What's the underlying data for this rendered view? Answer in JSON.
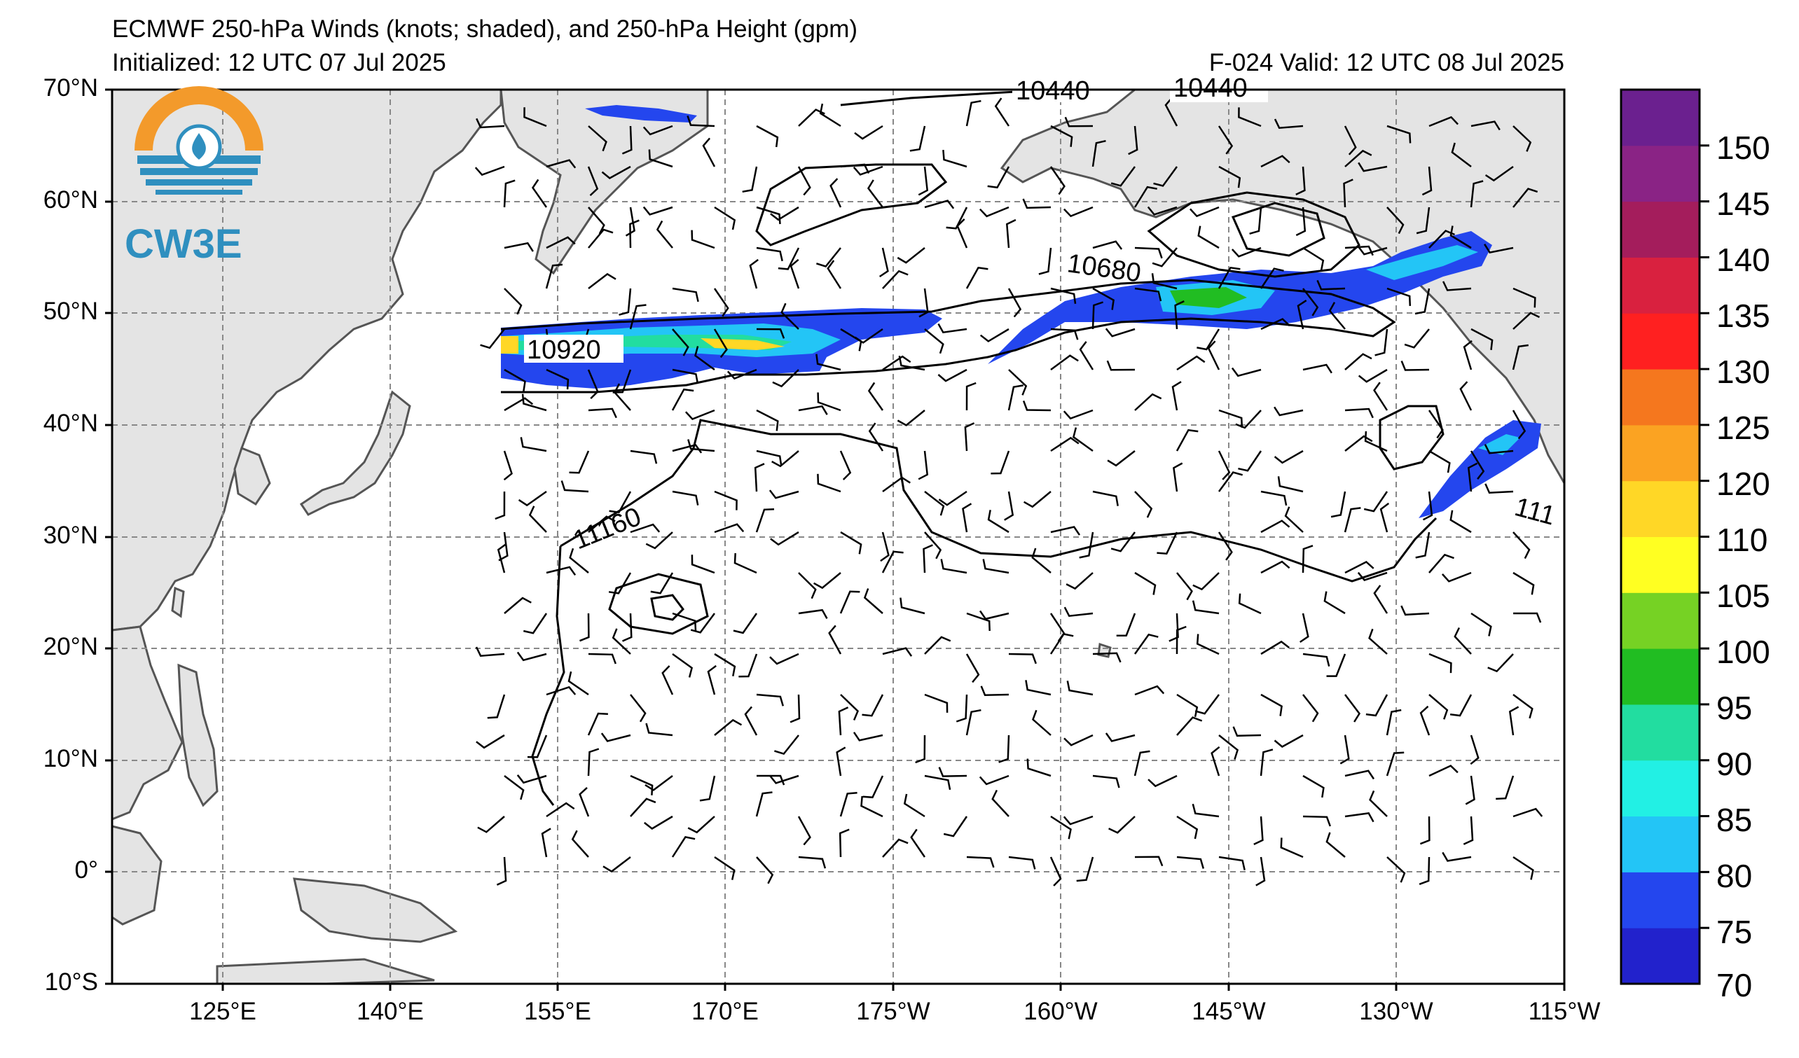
{
  "title": {
    "line1": "ECMWF 250-hPa Winds (knots; shaded), and 250-hPa Height (gpm)",
    "init": "Initialized: 12 UTC 07 Jul 2025",
    "valid": "F-024  Valid: 12 UTC 08 Jul 2025"
  },
  "logo": {
    "text": "CW3E",
    "colors": [
      "#F39A2B",
      "#2F8FBF"
    ]
  },
  "axes": {
    "lat_labels": [
      "70°N",
      "60°N",
      "50°N",
      "40°N",
      "30°N",
      "20°N",
      "10°N",
      "0°",
      "10°S"
    ],
    "lon_labels": [
      "125°E",
      "140°E",
      "155°E",
      "170°E",
      "175°W",
      "160°W",
      "145°W",
      "130°W",
      "115°W"
    ]
  },
  "contour_labels": [
    "10440",
    "10440",
    "10680",
    "10920",
    "11160",
    "111"
  ],
  "colorbar": {
    "ticks": [
      "150",
      "145",
      "140",
      "135",
      "130",
      "125",
      "120",
      "110",
      "105",
      "100",
      "95",
      "90",
      "85",
      "80",
      "75",
      "70"
    ],
    "colors": [
      "#2222CC",
      "#2446EE",
      "#23C5F6",
      "#22F0E4",
      "#22DDA0",
      "#21BD22",
      "#76D224",
      "#FFFF22",
      "#FFD726",
      "#FBA322",
      "#F5771E",
      "#FF2020",
      "#D9213F",
      "#A41D5C",
      "#8A2385",
      "#6B208F"
    ]
  },
  "chart_data": {
    "type": "map",
    "colorbar_range_knots": [
      70,
      155
    ],
    "colorbar_levels": [
      70,
      75,
      80,
      85,
      90,
      95,
      100,
      105,
      110,
      120,
      125,
      130,
      135,
      140,
      145,
      150
    ],
    "lon_range": "110°E to 115°W",
    "lat_range": [
      -10,
      70
    ],
    "height_contours_gpm": [
      10440,
      10680,
      10920,
      11160
    ]
  }
}
